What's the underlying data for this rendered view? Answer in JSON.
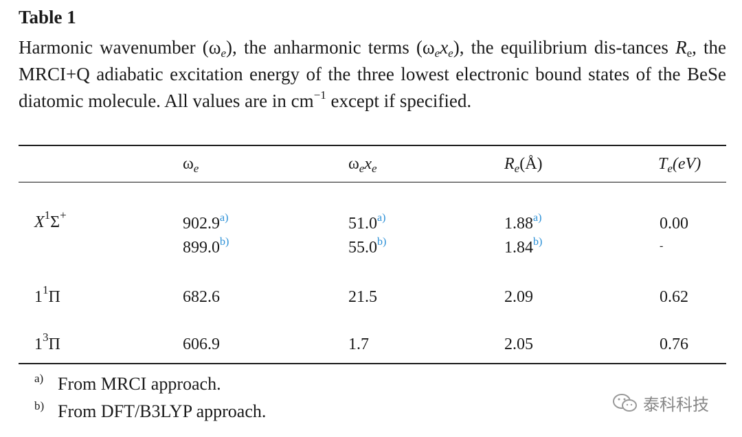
{
  "table_label": "Table 1",
  "caption": {
    "part1": "Harmonic wavenumber (ω",
    "part1_sub": "e",
    "part2": "), the anharmonic terms (ω",
    "part2_sub": "e",
    "part2b": "x",
    "part2b_sub": "e",
    "part3": "), the equilibrium dis-tances ",
    "part3_R": "R",
    "part3_R_sub": "e",
    "part4": ", the MRCI+Q adiabatic excitation energy of the three lowest electronic bound states of the BeSe diatomic molecule. All values are in cm",
    "part4_sup": "−1",
    "part5": " except if specified."
  },
  "headers": {
    "omega_e": "ω",
    "omega_e_sub": "e",
    "omega_xe": "ω",
    "omega_xe_sub1": "e",
    "omega_xe_x": "x",
    "omega_xe_sub2": "e",
    "re": "R",
    "re_sub": "e",
    "re_unit": "(Å)",
    "te": "T",
    "te_sub": "e",
    "te_unit": "(eV)"
  },
  "rows": [
    {
      "state_main": "X",
      "state_sup": "1",
      "state_sym": "Σ",
      "state_sup2": "+",
      "omega_e": [
        "902.9",
        "899.0"
      ],
      "omega_e_refs": [
        "a)",
        "b)"
      ],
      "omega_xe": [
        "51.0",
        "55.0"
      ],
      "omega_xe_refs": [
        "a)",
        "b)"
      ],
      "re": [
        "1.88",
        "1.84"
      ],
      "re_refs": [
        "a)",
        "b)"
      ],
      "te": [
        "0.00",
        "-"
      ]
    },
    {
      "state_main": "1",
      "state_sup": "1",
      "state_sym": "Π",
      "omega_e": "682.6",
      "omega_xe": "21.5",
      "re": "2.09",
      "te": "0.62"
    },
    {
      "state_main": "1",
      "state_sup": "3",
      "state_sym": "Π",
      "omega_e": "606.9",
      "omega_xe": "1.7",
      "re": "2.05",
      "te": "0.76"
    }
  ],
  "footnotes": [
    {
      "mark": "a)",
      "text": "From MRCI approach."
    },
    {
      "mark": "b)",
      "text": "From DFT/B3LYP approach."
    }
  ],
  "watermark": {
    "text": "泰科科技",
    "icon": "wechat-icon"
  }
}
